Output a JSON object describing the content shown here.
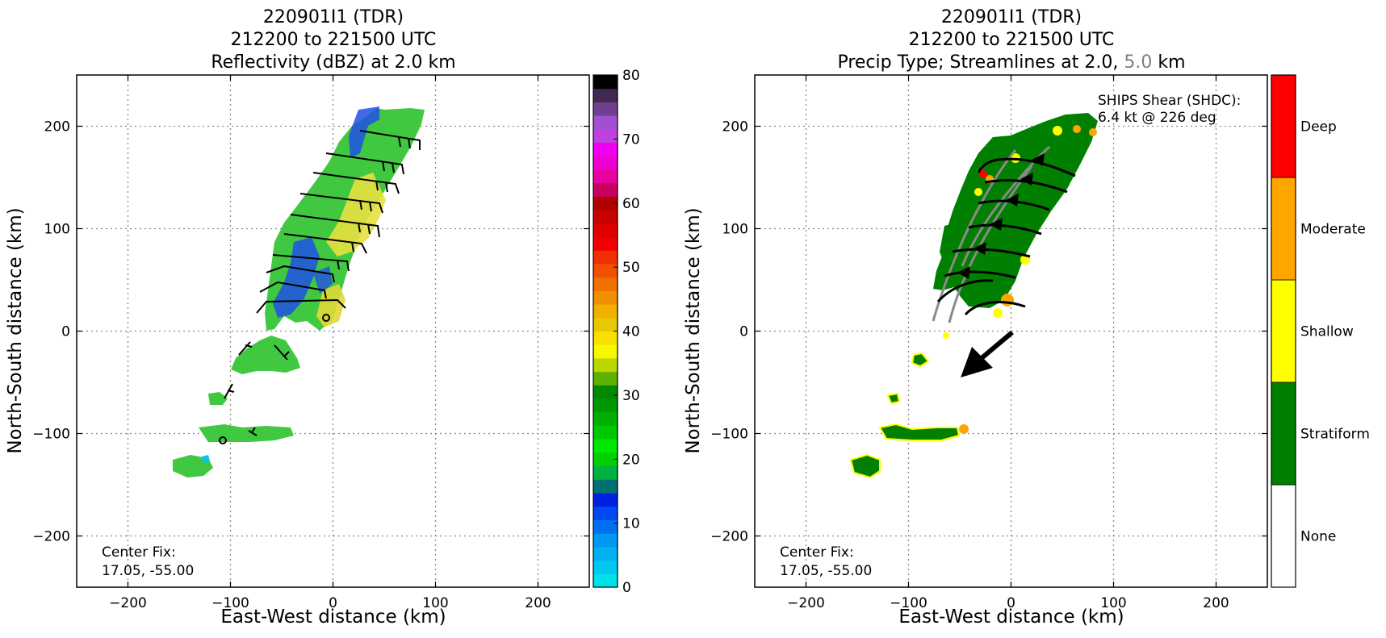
{
  "chart_data": [
    {
      "type": "heatmap",
      "title_lines": [
        "220901I1 (TDR)",
        "212200 to 221500 UTC",
        "Reflectivity (dBZ) at 2.0 km"
      ],
      "xlabel": "East-West distance (km)",
      "ylabel": "North-South distance (km)",
      "xlim": [
        -250,
        250
      ],
      "ylim": [
        -250,
        250
      ],
      "xticks": [
        -200,
        -100,
        0,
        100,
        200
      ],
      "yticks": [
        -200,
        -100,
        0,
        100,
        200
      ],
      "xtick_labels": [
        "−200",
        "−100",
        "0",
        "100",
        "200"
      ],
      "ytick_labels": [
        "−200",
        "−100",
        "0",
        "100",
        "200"
      ],
      "grid": true,
      "center_fix_label": "Center Fix:",
      "center_fix_value": "17.05, -55.00",
      "colorbar": {
        "range": [
          0,
          80
        ],
        "ticks": [
          0,
          10,
          20,
          30,
          40,
          50,
          60,
          70,
          80
        ],
        "tick_labels": [
          "0",
          "10",
          "20",
          "30",
          "40",
          "50",
          "60",
          "70",
          "80"
        ],
        "colors": [
          "#00e0e8",
          "#00c8f0",
          "#00b0f0",
          "#0098f0",
          "#0070f0",
          "#0048f0",
          "#0020e0",
          "#007070",
          "#00b040",
          "#00d000",
          "#00e800",
          "#00c800",
          "#00b000",
          "#009800",
          "#008800",
          "#60b000",
          "#b8d800",
          "#f8f800",
          "#f8e000",
          "#e8c800",
          "#f0b000",
          "#f09000",
          "#f07000",
          "#f05000",
          "#f03000",
          "#f00000",
          "#e00000",
          "#c80000",
          "#b00000",
          "#c80060",
          "#e800a0",
          "#f000d0",
          "#f000f0",
          "#c040e0",
          "#a050d0",
          "#704090",
          "#402850",
          "#000000"
        ]
      }
    },
    {
      "type": "heatmap",
      "title_lines": [
        "220901I1 (TDR)",
        "212200 to 221500 UTC"
      ],
      "title_line3_prefix": "Precip Type; Streamlines at 2.0, ",
      "title_line3_gray": "5.0",
      "title_line3_suffix": " km",
      "xlabel": "East-West distance (km)",
      "ylabel": "North-South distance (km)",
      "xlim": [
        -250,
        250
      ],
      "ylim": [
        -250,
        250
      ],
      "xticks": [
        -200,
        -100,
        0,
        100,
        200
      ],
      "yticks": [
        -200,
        -100,
        0,
        100,
        200
      ],
      "xtick_labels": [
        "−200",
        "−100",
        "0",
        "100",
        "200"
      ],
      "ytick_labels": [
        "−200",
        "−100",
        "0",
        "100",
        "200"
      ],
      "grid": true,
      "center_fix_label": "Center Fix:",
      "center_fix_value": "17.05, -55.00",
      "shear_label": "SHIPS Shear (SHDC):",
      "shear_value": "6.4 kt @ 226 deg",
      "shear_vector": {
        "speed_kt": 6.4,
        "direction_deg": 226
      },
      "categories": [
        "None",
        "Stratiform",
        "Shallow",
        "Moderate",
        "Deep"
      ],
      "category_colors": [
        "#ffffff",
        "#007f00",
        "#ffff00",
        "#ffa500",
        "#ff0000"
      ]
    }
  ]
}
